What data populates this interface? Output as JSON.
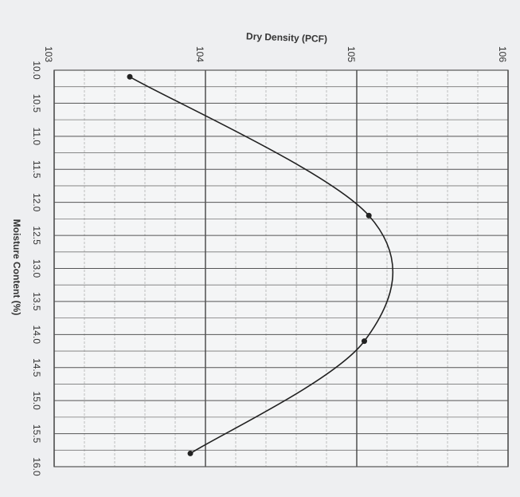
{
  "chart_data": {
    "type": "line",
    "title": "Dry Density (PCF)",
    "x_label": "Moisture Content (%)",
    "x": [
      10.1,
      12.2,
      14.1,
      15.8
    ],
    "values": [
      103.5,
      105.08,
      105.05,
      103.9
    ],
    "color": "#222222",
    "xlim": [
      10,
      16
    ],
    "xticks": [
      {
        "value": 10,
        "label": "10.0"
      },
      10.5,
      {
        "value": 11,
        "label": "11.0"
      },
      11.5,
      {
        "value": 12,
        "label": "12.0"
      },
      12.5,
      {
        "value": 13,
        "label": "13.0"
      },
      13.5,
      {
        "value": 14,
        "label": "14.0"
      },
      14.5,
      {
        "value": 15,
        "label": "15.0"
      },
      15.5,
      {
        "value": 16,
        "label": "16.0"
      }
    ],
    "ylim": [
      103,
      106
    ],
    "yticks": [
      103,
      104,
      105,
      106
    ],
    "grid": true
  }
}
